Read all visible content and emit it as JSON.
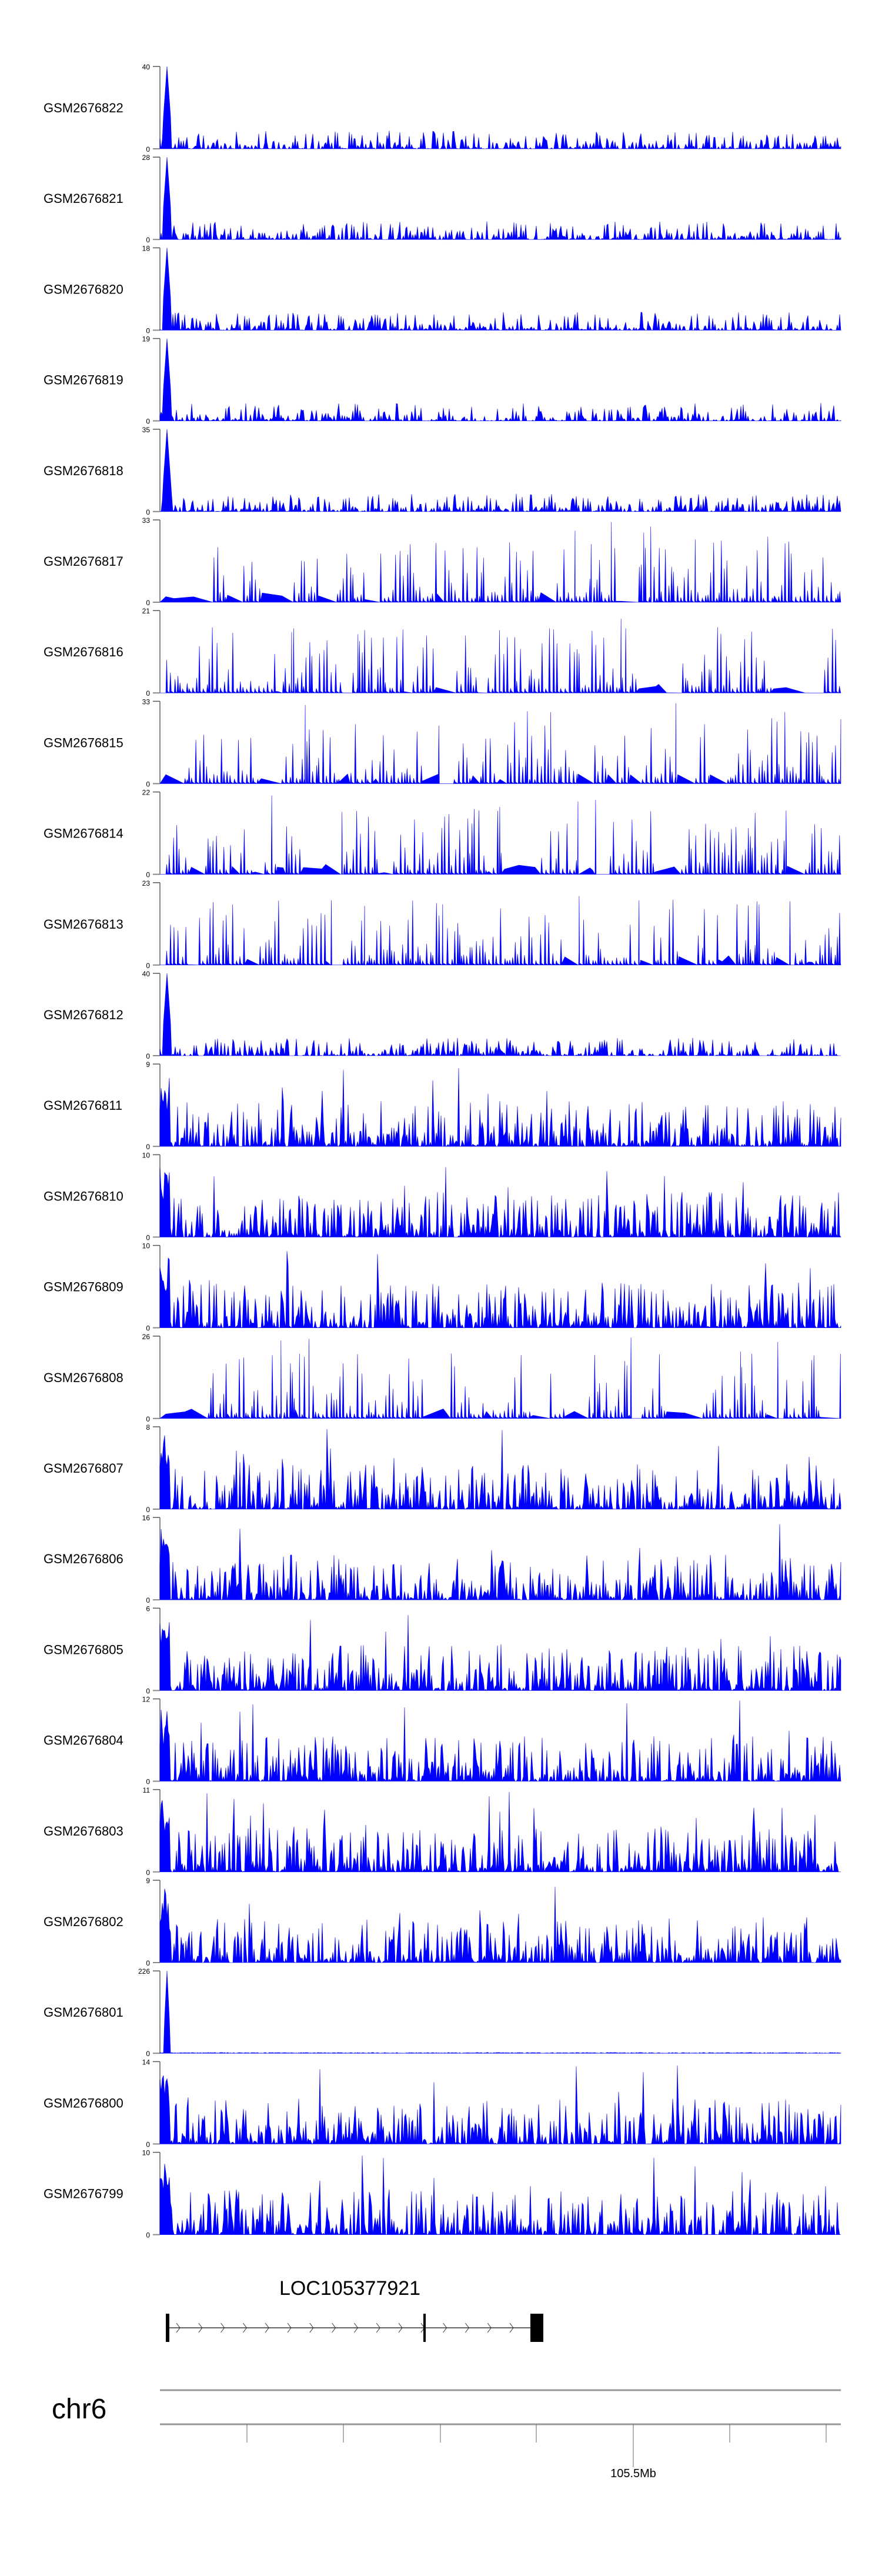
{
  "chart_data": {
    "type": "area",
    "title": "",
    "color": "#0000ff",
    "tracks": [
      {
        "name": "GSM2676822",
        "ymax": 40,
        "ymin": 0,
        "pattern": "early-peak"
      },
      {
        "name": "GSM2676821",
        "ymax": 28,
        "ymin": 0,
        "pattern": "early-peak"
      },
      {
        "name": "GSM2676820",
        "ymax": 18,
        "ymin": 0,
        "pattern": "early-peak"
      },
      {
        "name": "GSM2676819",
        "ymax": 19,
        "ymin": 0,
        "pattern": "early-peak"
      },
      {
        "name": "GSM2676818",
        "ymax": 35,
        "ymin": 0,
        "pattern": "early-peak"
      },
      {
        "name": "GSM2676817",
        "ymax": 33,
        "ymin": 0,
        "pattern": "sparse"
      },
      {
        "name": "GSM2676816",
        "ymax": 21,
        "ymin": 0,
        "pattern": "sparse"
      },
      {
        "name": "GSM2676815",
        "ymax": 33,
        "ymin": 0,
        "pattern": "sparse"
      },
      {
        "name": "GSM2676814",
        "ymax": 22,
        "ymin": 0,
        "pattern": "sparse"
      },
      {
        "name": "GSM2676813",
        "ymax": 23,
        "ymin": 0,
        "pattern": "sparse"
      },
      {
        "name": "GSM2676812",
        "ymax": 40,
        "ymin": 0,
        "pattern": "early-peak"
      },
      {
        "name": "GSM2676811",
        "ymax": 9,
        "ymin": 0,
        "pattern": "dense"
      },
      {
        "name": "GSM2676810",
        "ymax": 10,
        "ymin": 0,
        "pattern": "dense"
      },
      {
        "name": "GSM2676809",
        "ymax": 10,
        "ymin": 0,
        "pattern": "dense"
      },
      {
        "name": "GSM2676808",
        "ymax": 26,
        "ymin": 0,
        "pattern": "sparse"
      },
      {
        "name": "GSM2676807",
        "ymax": 8,
        "ymin": 0,
        "pattern": "dense"
      },
      {
        "name": "GSM2676806",
        "ymax": 16,
        "ymin": 0,
        "pattern": "dense"
      },
      {
        "name": "GSM2676805",
        "ymax": 6,
        "ymin": 0,
        "pattern": "dense"
      },
      {
        "name": "GSM2676804",
        "ymax": 12,
        "ymin": 0,
        "pattern": "dense"
      },
      {
        "name": "GSM2676803",
        "ymax": 11,
        "ymin": 0,
        "pattern": "dense"
      },
      {
        "name": "GSM2676802",
        "ymax": 9,
        "ymin": 0,
        "pattern": "dense"
      },
      {
        "name": "GSM2676801",
        "ymax": 226,
        "ymin": 0,
        "pattern": "single-peak"
      },
      {
        "name": "GSM2676800",
        "ymax": 14,
        "ymin": 0,
        "pattern": "dense"
      },
      {
        "name": "GSM2676799",
        "ymax": 10,
        "ymin": 0,
        "pattern": "dense"
      }
    ],
    "gene": {
      "name": "LOC105377921",
      "strand": "+"
    },
    "chromosome": "chr6",
    "axis_label": "105.5Mb"
  }
}
